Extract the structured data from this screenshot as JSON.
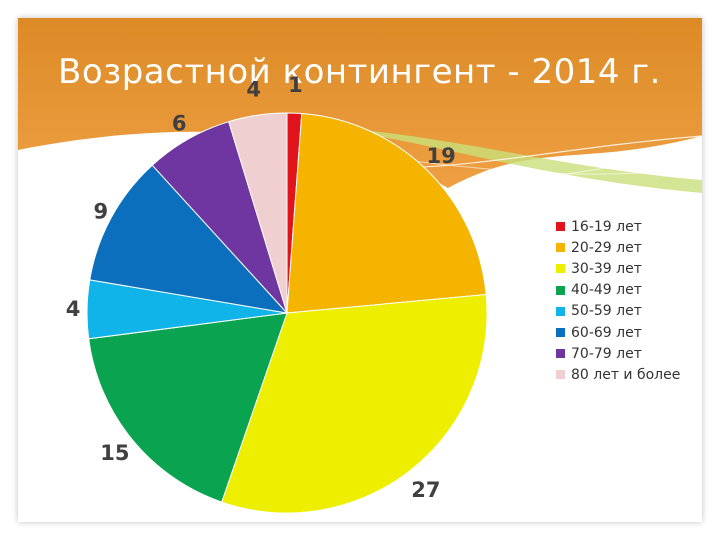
{
  "slide": {
    "title": "Возрастной контингент - 2014 г."
  },
  "chart_data": {
    "type": "pie",
    "title": "",
    "legend_position": "right",
    "categories": [
      "16-19 лет",
      "20-29 лет",
      "30-39 лет",
      "40-49 лет",
      "50-59 лет",
      "60-69 лет",
      "70-79 лет",
      "80 лет и более"
    ],
    "values": [
      1,
      19,
      27,
      15,
      4,
      9,
      6,
      4
    ],
    "colors": [
      "#e2141b",
      "#f4b400",
      "#eeee00",
      "#0aa350",
      "#10b4e8",
      "#0c6fbd",
      "#6f35a0",
      "#efcfcf"
    ]
  }
}
